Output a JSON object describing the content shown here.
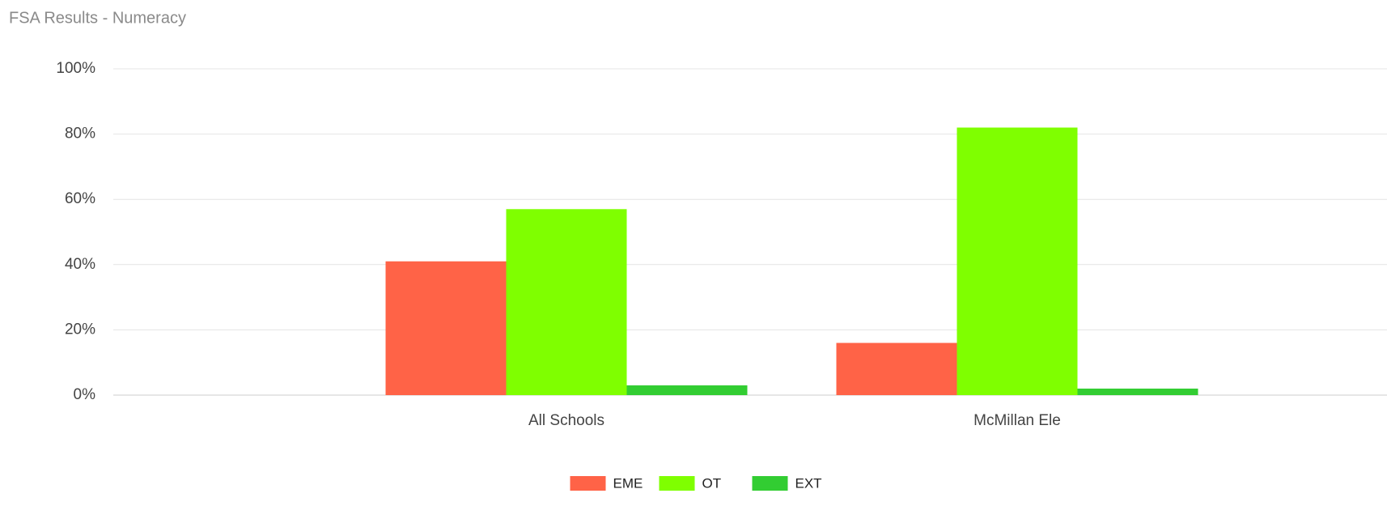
{
  "chart_data": {
    "type": "bar",
    "title": "FSA Results - Numeracy",
    "categories": [
      "All Schools",
      "McMillan Ele"
    ],
    "series": [
      {
        "name": "EME",
        "color": "#ff6347",
        "values": [
          41,
          16
        ]
      },
      {
        "name": "OT",
        "color": "#7fff00",
        "values": [
          57,
          82
        ]
      },
      {
        "name": "EXT",
        "color": "#32cd32",
        "values": [
          3,
          2
        ]
      }
    ],
    "ylim": [
      0,
      100
    ],
    "yticks": [
      {
        "value": 0,
        "label": "0%"
      },
      {
        "value": 20,
        "label": "20%"
      },
      {
        "value": 40,
        "label": "40%"
      },
      {
        "value": 60,
        "label": "60%"
      },
      {
        "value": 80,
        "label": "80%"
      },
      {
        "value": 100,
        "label": "100%"
      }
    ],
    "grid": true,
    "legend": "bottom"
  }
}
